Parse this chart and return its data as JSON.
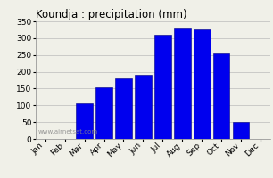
{
  "title": "Koundja : precipitation (mm)",
  "months": [
    "Jan",
    "Feb",
    "Mar",
    "Apr",
    "May",
    "Jun",
    "Jul",
    "Aug",
    "Sep",
    "Oct",
    "Nov",
    "Dec"
  ],
  "values": [
    0,
    0,
    105,
    155,
    180,
    190,
    310,
    330,
    325,
    255,
    50,
    0
  ],
  "bar_color": "#0000EE",
  "bar_edge_color": "#000080",
  "ylim": [
    0,
    350
  ],
  "yticks": [
    0,
    50,
    100,
    150,
    200,
    250,
    300,
    350
  ],
  "background_color": "#f0f0e8",
  "grid_color": "#bbbbbb",
  "title_fontsize": 8.5,
  "tick_fontsize": 6.5,
  "watermark": "www.airnetsat.com"
}
